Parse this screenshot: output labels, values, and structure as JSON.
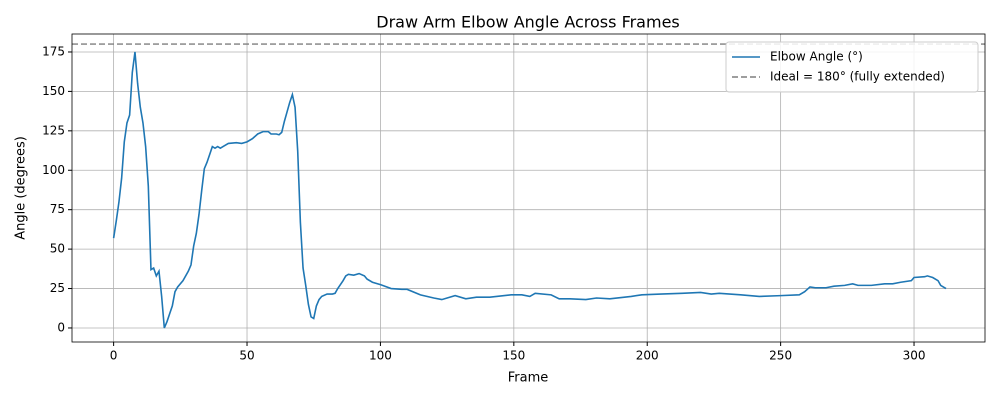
{
  "chart_data": {
    "type": "line",
    "title": "Draw Arm Elbow Angle Across Frames",
    "x_label": "Frame",
    "y_label": "Angle (degrees)",
    "xlim": [
      -15.6,
      326.6
    ],
    "ylim": [
      -8.9,
      186.4
    ],
    "xticks": [
      0,
      50,
      100,
      150,
      200,
      250,
      300
    ],
    "yticks": [
      0,
      25,
      50,
      75,
      100,
      125,
      150,
      175
    ],
    "grid": true,
    "legend": "upper right",
    "series": [
      {
        "name": "Elbow Angle (°)",
        "color": "#1f77b4",
        "x": [
          0,
          1,
          2,
          3,
          4,
          5,
          6,
          7,
          8,
          9,
          10,
          11,
          12,
          13,
          14,
          15,
          16,
          17,
          18,
          19,
          20,
          21,
          22,
          23,
          24,
          26,
          28,
          29,
          30,
          31,
          32,
          33,
          34,
          35,
          36,
          37,
          38,
          39,
          40,
          41,
          43,
          46,
          48,
          50,
          52,
          54,
          56,
          58,
          59,
          61,
          62,
          63,
          64,
          65,
          66,
          67,
          68,
          69,
          70,
          71,
          72,
          73,
          74,
          75,
          76,
          77,
          78,
          80,
          82,
          83,
          84,
          86,
          87,
          88,
          90,
          92,
          94,
          95,
          97,
          100,
          104,
          108,
          110,
          115,
          120,
          123,
          128,
          132,
          136,
          141,
          149,
          153,
          156,
          158,
          164,
          167,
          171,
          177,
          181,
          186,
          194,
          198,
          205,
          213,
          220,
          224,
          227,
          235,
          242,
          250,
          257,
          259,
          261,
          263,
          267,
          270,
          274,
          277,
          279,
          284,
          289,
          292,
          295,
          299,
          300,
          304,
          305,
          307,
          309,
          310,
          312
        ],
        "values": [
          57,
          68,
          80,
          95,
          118,
          130,
          135,
          162,
          175,
          155,
          140,
          130,
          115,
          90,
          37,
          38,
          33,
          36,
          20,
          0,
          4,
          9,
          14,
          23,
          26,
          30,
          36,
          40,
          52,
          60,
          72,
          87,
          101,
          105,
          110,
          115,
          114,
          115,
          114,
          115,
          117,
          117.5,
          117,
          118,
          120,
          123,
          124.5,
          124.5,
          123,
          123,
          122.5,
          124,
          131,
          137,
          143,
          148,
          140,
          112,
          67,
          38,
          27,
          15,
          7,
          6,
          14,
          18,
          20,
          21.5,
          21.5,
          22,
          25,
          30,
          33,
          34,
          33.5,
          34.5,
          33,
          31,
          29,
          27.5,
          25,
          24.5,
          24.5,
          21,
          19,
          18,
          20.5,
          18.5,
          19.5,
          19.5,
          21,
          21,
          20,
          22,
          21,
          18.5,
          18.5,
          18,
          19,
          18.5,
          20,
          21,
          21.5,
          22,
          22.5,
          21.5,
          22,
          21,
          20,
          20.5,
          21,
          23,
          26,
          25.5,
          25.5,
          26.5,
          27,
          28,
          27,
          27,
          28,
          28,
          29,
          30,
          32,
          32.5,
          33,
          32,
          30,
          27,
          25
        ]
      }
    ],
    "hlines": [
      {
        "name": "Ideal = 180° (fully extended)",
        "color": "#7f7f7f",
        "value": 180
      }
    ]
  }
}
